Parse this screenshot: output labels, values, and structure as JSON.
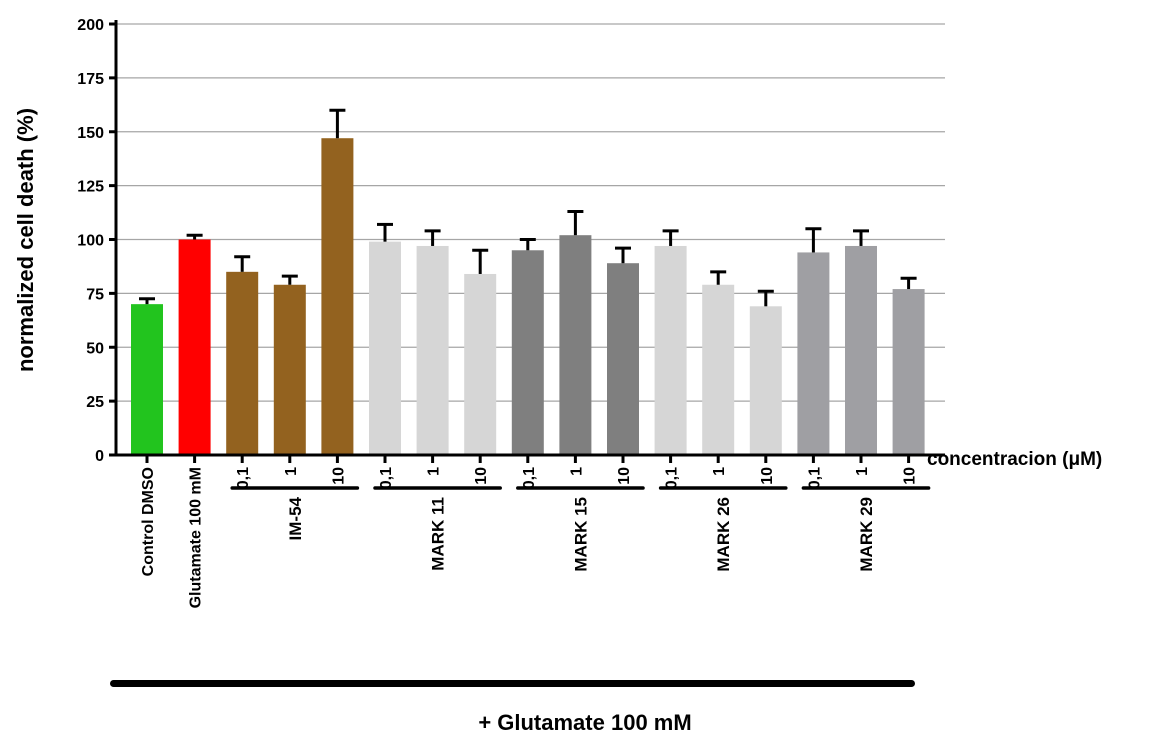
{
  "chart_data": {
    "type": "bar",
    "ylabel": "normalized cell death (%)",
    "ylim": [
      0,
      200
    ],
    "yticks": [
      0,
      25,
      50,
      75,
      100,
      125,
      150,
      175,
      200
    ],
    "grid": true,
    "concentration_label": "concentracion (μM)",
    "footer": "+ Glutamate 100 mM",
    "categories": [
      "Control DMSO",
      "Glutamate 100 mM",
      "0,1",
      "1",
      "10",
      "0,1",
      "1",
      "10",
      "0,1",
      "1",
      "10",
      "0,1",
      "1",
      "10",
      "0,1",
      "1",
      "10"
    ],
    "values": [
      70,
      100,
      85,
      79,
      147,
      99,
      97,
      84,
      95,
      102,
      89,
      97,
      79,
      69,
      94,
      97,
      77
    ],
    "errors": [
      2.5,
      2,
      7,
      4,
      13,
      8,
      7,
      11,
      5,
      11,
      7,
      7,
      6,
      7,
      11,
      7,
      5
    ],
    "colors": [
      "#22c41e",
      "#ff0000",
      "#93621f",
      "#93621f",
      "#93621f",
      "#d6d6d6",
      "#d6d6d6",
      "#d6d6d6",
      "#7f7f7f",
      "#7f7f7f",
      "#7f7f7f",
      "#d6d6d6",
      "#d6d6d6",
      "#d6d6d6",
      "#9f9fa3",
      "#9f9fa3",
      "#9f9fa3"
    ],
    "groups": [
      {
        "name": "IM-54",
        "start": 2,
        "end": 4
      },
      {
        "name": "MARK 11",
        "start": 5,
        "end": 7
      },
      {
        "name": "MARK 15",
        "start": 8,
        "end": 10
      },
      {
        "name": "MARK 26",
        "start": 11,
        "end": 13
      },
      {
        "name": "MARK 29",
        "start": 14,
        "end": 16
      }
    ]
  }
}
